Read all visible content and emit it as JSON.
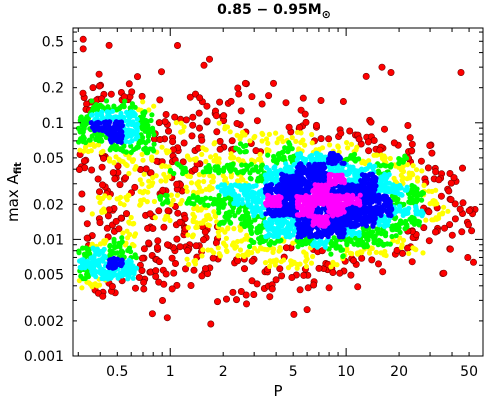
{
  "chart_data": {
    "type": "scatter",
    "title": "0.85 − 0.95M",
    "title_symbol": "⊙",
    "xlabel": "P",
    "ylabel_main": "max A",
    "ylabel_sub": "fit",
    "xscale": "log",
    "yscale": "log",
    "xlim": [
      0.28,
      60
    ],
    "ylim": [
      0.001,
      0.65
    ],
    "x_ticks": [
      0.5,
      1,
      2,
      5,
      10,
      20,
      50
    ],
    "x_tick_labels": [
      "0.5",
      "1",
      "2",
      "5",
      "10",
      "20",
      "50"
    ],
    "y_ticks": [
      0.001,
      0.002,
      0.005,
      0.01,
      0.02,
      0.05,
      0.1,
      0.2,
      0.5
    ],
    "y_tick_labels": [
      "0.001",
      "0.002",
      "0.005",
      "0.01",
      "0.02",
      "0.05",
      "0.1",
      "0.2",
      "0.5"
    ],
    "density_colors": [
      "#ff0000",
      "#ffff00",
      "#00ff00",
      "#00ffff",
      "#0000ff",
      "#ff00ff"
    ],
    "density_centers": [
      {
        "x": 7.5,
        "y": 0.021
      },
      {
        "x": 0.45,
        "y": 0.09
      },
      {
        "x": 0.42,
        "y": 0.006
      }
    ],
    "outliers": [
      {
        "x": 0.32,
        "y": 0.52
      },
      {
        "x": 0.32,
        "y": 0.43
      },
      {
        "x": 1.1,
        "y": 0.46
      },
      {
        "x": 6.0,
        "y": 0.0025
      },
      {
        "x": 16.0,
        "y": 0.3
      },
      {
        "x": 18.0,
        "y": 0.27
      },
      {
        "x": 13.0,
        "y": 0.25
      },
      {
        "x": 45.0,
        "y": 0.27
      }
    ]
  }
}
